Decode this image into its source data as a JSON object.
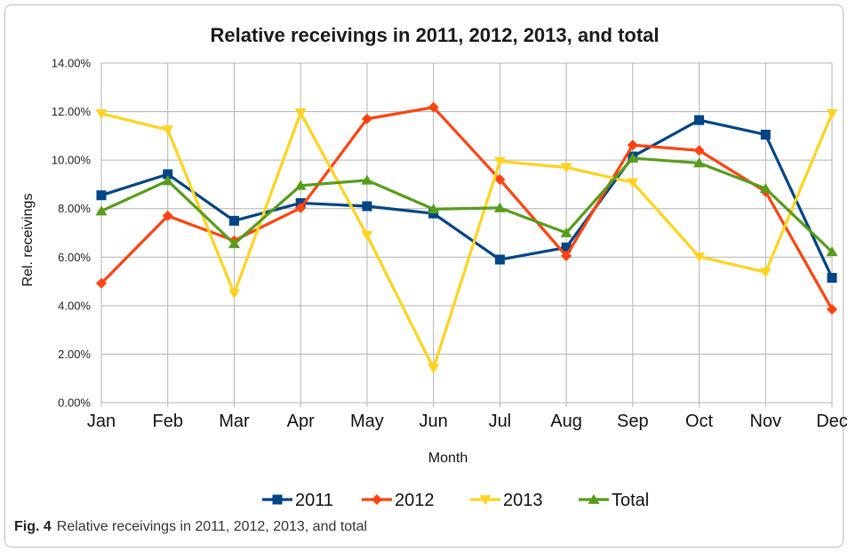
{
  "caption": {
    "label": "Fig. 4",
    "text": "Relative receivings in 2011, 2012, 2013, and total"
  },
  "chart_data": {
    "type": "line",
    "title": "Relative receivings in 2011, 2012, 2013, and total",
    "xlabel": "Month",
    "ylabel": "Rel. receivings",
    "categories": [
      "Jan",
      "Feb",
      "Mar",
      "Apr",
      "May",
      "Jun",
      "Jul",
      "Aug",
      "Sep",
      "Oct",
      "Nov",
      "Dec"
    ],
    "ylim": [
      0,
      14
    ],
    "yticks": [
      "0.00%",
      "2.00%",
      "4.00%",
      "6.00%",
      "8.00%",
      "10.00%",
      "12.00%",
      "14.00%"
    ],
    "grid": true,
    "legend_position": "bottom",
    "series": [
      {
        "name": "2011",
        "color": "#004586",
        "marker": "square",
        "values": [
          8.55,
          9.42,
          7.5,
          8.23,
          8.1,
          7.8,
          5.9,
          6.4,
          10.15,
          11.65,
          11.05,
          5.15
        ]
      },
      {
        "name": "2012",
        "color": "#ff420e",
        "marker": "diamond",
        "values": [
          4.92,
          7.7,
          6.68,
          8.03,
          11.7,
          12.18,
          9.2,
          6.05,
          10.62,
          10.4,
          8.7,
          3.85
        ]
      },
      {
        "name": "2013",
        "color": "#ffd320",
        "marker": "triangle-down",
        "values": [
          11.92,
          11.25,
          4.5,
          11.95,
          6.9,
          1.42,
          9.95,
          9.7,
          9.08,
          6.02,
          5.38,
          11.92
        ]
      },
      {
        "name": "Total",
        "color": "#579d1c",
        "marker": "triangle-up",
        "values": [
          7.9,
          9.15,
          6.55,
          8.95,
          9.17,
          7.98,
          8.03,
          7.0,
          10.08,
          9.88,
          8.83,
          6.22
        ]
      }
    ]
  }
}
